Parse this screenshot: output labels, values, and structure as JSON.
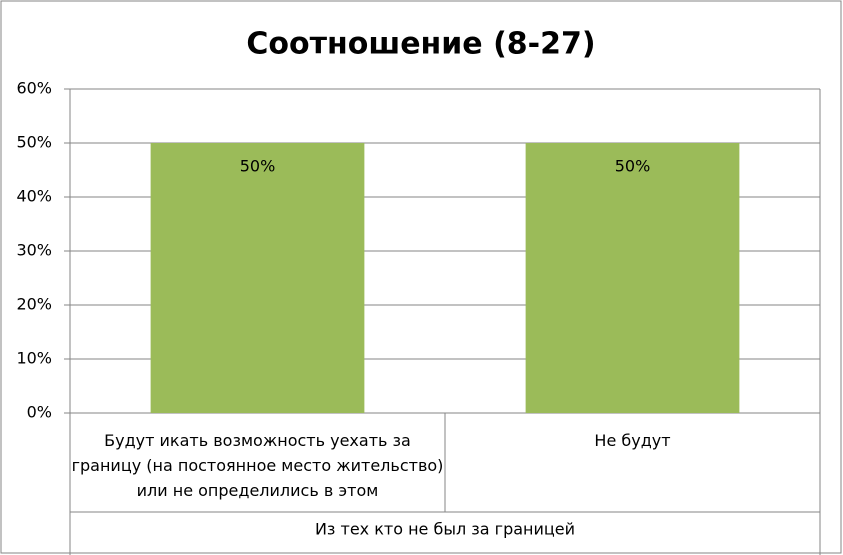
{
  "chart_data": {
    "type": "bar",
    "title": "Соотношение (8-27)",
    "categories": [
      "Будут икать возможность уехать за границу  (на постоянное место жительство) или не определились в этом",
      "Не будут"
    ],
    "values": [
      50,
      50
    ],
    "value_labels": [
      "50%",
      "50%"
    ],
    "color": "#9bbb59",
    "x_label": "Из тех кто не был за границей",
    "ylim": [
      0,
      60
    ],
    "yticks": [
      {
        "value": 0,
        "label": "0%"
      },
      {
        "value": 10,
        "label": "10%"
      },
      {
        "value": 20,
        "label": "20%"
      },
      {
        "value": 30,
        "label": "30%"
      },
      {
        "value": 40,
        "label": "40%"
      },
      {
        "value": 50,
        "label": "50%"
      },
      {
        "value": 60,
        "label": "60%"
      }
    ],
    "grid": true
  }
}
